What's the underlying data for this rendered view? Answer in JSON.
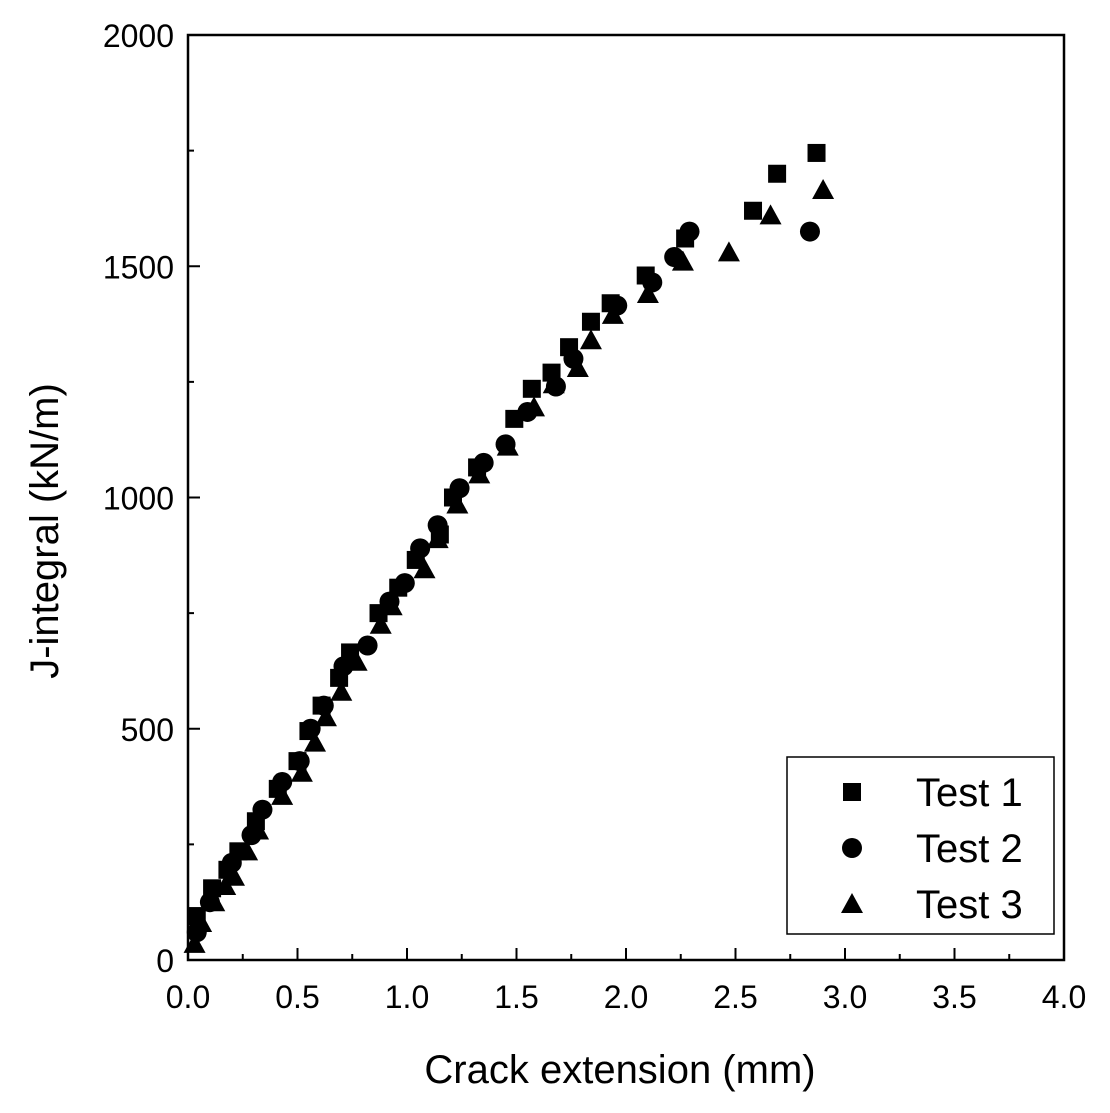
{
  "chart_data": {
    "type": "scatter",
    "xlabel": "Crack extension (mm)",
    "ylabel": "J-integral (kN/m)",
    "xlim": [
      0,
      4.0
    ],
    "ylim": [
      0,
      2000
    ],
    "x_ticks": [
      "0.0",
      "0.5",
      "1.0",
      "1.5",
      "2.0",
      "2.5",
      "3.0",
      "3.5",
      "4.0"
    ],
    "y_ticks": [
      "0",
      "500",
      "1000",
      "1500",
      "2000"
    ],
    "legend_position": "bottom-right",
    "grid": false,
    "series": [
      {
        "name": "Test 1",
        "marker": "square",
        "points": [
          [
            0.04,
            95
          ],
          [
            0.11,
            155
          ],
          [
            0.18,
            195
          ],
          [
            0.23,
            235
          ],
          [
            0.31,
            300
          ],
          [
            0.41,
            370
          ],
          [
            0.5,
            430
          ],
          [
            0.55,
            495
          ],
          [
            0.61,
            550
          ],
          [
            0.69,
            610
          ],
          [
            0.74,
            665
          ],
          [
            0.87,
            750
          ],
          [
            0.96,
            805
          ],
          [
            1.04,
            865
          ],
          [
            1.15,
            920
          ],
          [
            1.21,
            1000
          ],
          [
            1.32,
            1065
          ],
          [
            1.49,
            1170
          ],
          [
            1.57,
            1235
          ],
          [
            1.66,
            1270
          ],
          [
            1.74,
            1325
          ],
          [
            1.84,
            1380
          ],
          [
            1.93,
            1420
          ],
          [
            2.09,
            1480
          ],
          [
            2.27,
            1560
          ],
          [
            2.58,
            1620
          ],
          [
            2.69,
            1700
          ],
          [
            2.87,
            1745
          ]
        ]
      },
      {
        "name": "Test 2",
        "marker": "circle",
        "points": [
          [
            0.04,
            60
          ],
          [
            0.1,
            125
          ],
          [
            0.2,
            210
          ],
          [
            0.29,
            270
          ],
          [
            0.34,
            325
          ],
          [
            0.43,
            385
          ],
          [
            0.51,
            430
          ],
          [
            0.56,
            500
          ],
          [
            0.62,
            550
          ],
          [
            0.71,
            635
          ],
          [
            0.82,
            680
          ],
          [
            0.92,
            775
          ],
          [
            0.99,
            815
          ],
          [
            1.06,
            890
          ],
          [
            1.14,
            940
          ],
          [
            1.24,
            1020
          ],
          [
            1.35,
            1075
          ],
          [
            1.45,
            1115
          ],
          [
            1.55,
            1185
          ],
          [
            1.68,
            1240
          ],
          [
            1.76,
            1300
          ],
          [
            1.96,
            1415
          ],
          [
            2.12,
            1465
          ],
          [
            2.22,
            1520
          ],
          [
            2.29,
            1575
          ],
          [
            2.84,
            1575
          ]
        ]
      },
      {
        "name": "Test 3",
        "marker": "triangle",
        "points": [
          [
            0.03,
            35
          ],
          [
            0.06,
            80
          ],
          [
            0.12,
            125
          ],
          [
            0.17,
            160
          ],
          [
            0.21,
            180
          ],
          [
            0.27,
            235
          ],
          [
            0.32,
            280
          ],
          [
            0.43,
            355
          ],
          [
            0.52,
            405
          ],
          [
            0.58,
            470
          ],
          [
            0.63,
            525
          ],
          [
            0.7,
            580
          ],
          [
            0.77,
            645
          ],
          [
            0.88,
            725
          ],
          [
            0.93,
            765
          ],
          [
            1.08,
            845
          ],
          [
            1.14,
            910
          ],
          [
            1.23,
            985
          ],
          [
            1.33,
            1050
          ],
          [
            1.46,
            1110
          ],
          [
            1.58,
            1195
          ],
          [
            1.67,
            1245
          ],
          [
            1.78,
            1280
          ],
          [
            1.84,
            1340
          ],
          [
            1.94,
            1395
          ],
          [
            2.1,
            1440
          ],
          [
            2.26,
            1510
          ],
          [
            2.47,
            1530
          ],
          [
            2.66,
            1610
          ],
          [
            2.9,
            1665
          ]
        ]
      }
    ]
  }
}
